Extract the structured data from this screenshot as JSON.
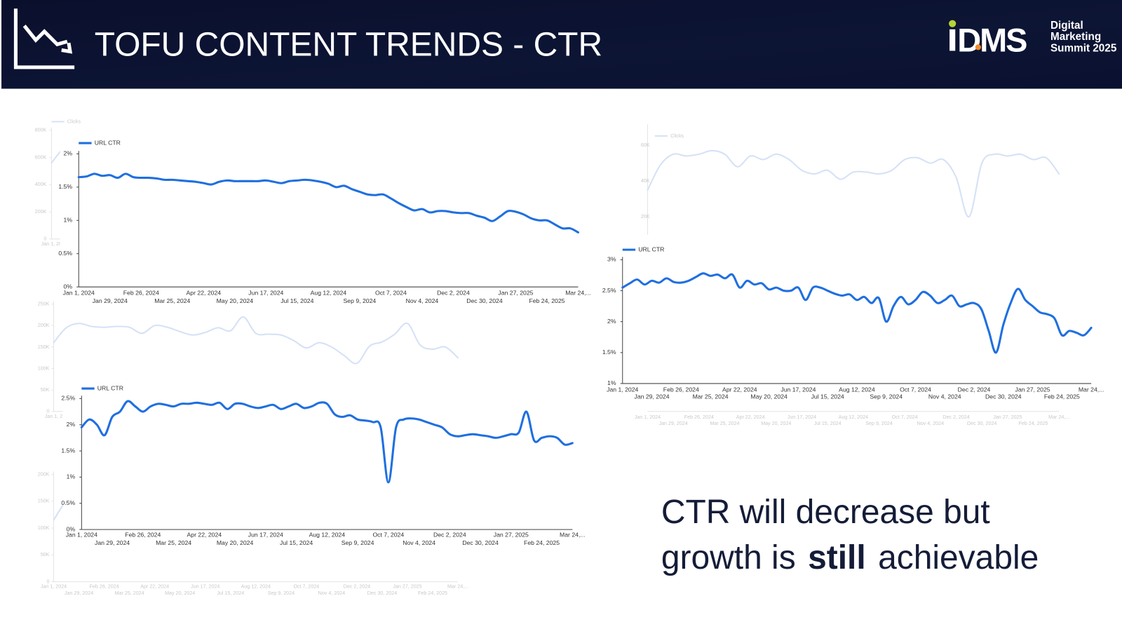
{
  "header": {
    "title": "TOFU CONTENT TRENDS - CTR",
    "logo": {
      "mark": "DMS",
      "line1": "Digital",
      "line2": "Marketing",
      "line3": "Summit 2025"
    }
  },
  "caption": {
    "line1": "CTR will decrease but",
    "line2_start": "growth is",
    "line2_bold": "still",
    "line2_end": "achievable"
  },
  "chart_data": [
    {
      "type": "line",
      "ylim": [
        0,
        800000
      ],
      "yticks": [
        0,
        {
          "value": 200000,
          "label": "200K"
        },
        {
          "value": 400000,
          "label": "400K"
        },
        {
          "value": 600000,
          "label": "600K"
        },
        {
          "value": 800000,
          "label": "800K"
        }
      ],
      "categories": [
        "Jan 1, 20",
        null,
        null,
        null,
        null,
        null,
        null,
        null,
        null,
        null,
        null,
        null,
        null,
        null,
        null,
        null,
        null,
        null,
        null,
        null,
        null,
        null,
        null,
        null,
        null,
        null,
        null,
        null,
        null,
        null,
        null,
        null,
        null
      ],
      "series": [
        {
          "name": "Clicks",
          "color": "#d5e1f7",
          "values": [
            560000,
            700000,
            720000,
            690000,
            700000,
            710000,
            700000,
            660000,
            700000,
            690000,
            680000,
            650000,
            670000,
            690000,
            670000,
            720000,
            650000,
            640000,
            640000,
            600000,
            560000,
            590000,
            570000,
            520000,
            480000,
            560000,
            580000,
            630000,
            700000,
            580000,
            550000,
            570000,
            500000
          ]
        }
      ]
    },
    {
      "type": "line",
      "ylim": [
        0,
        250000
      ],
      "yticks": [
        0,
        {
          "value": 50000,
          "label": "50K"
        },
        {
          "value": 100000,
          "label": "100K"
        },
        {
          "value": 150000,
          "label": "150K"
        },
        {
          "value": 200000,
          "label": "200K"
        },
        {
          "value": 250000,
          "label": "250K"
        }
      ],
      "categories": [
        "Jan 1, 2",
        null,
        null,
        null,
        null,
        null,
        null,
        null,
        null,
        null,
        null,
        null,
        null,
        null,
        null,
        null,
        null,
        null,
        null,
        null,
        null,
        null,
        null,
        null,
        null,
        null,
        null,
        null,
        null,
        null,
        null,
        null,
        null
      ],
      "series": [
        {
          "color": "#d5e1f7",
          "values": [
            160000,
            195000,
            205000,
            198000,
            196000,
            198000,
            196000,
            182000,
            200000,
            196000,
            186000,
            178000,
            184000,
            195000,
            188000,
            220000,
            182000,
            180000,
            178000,
            165000,
            148000,
            160000,
            150000,
            130000,
            112000,
            152000,
            162000,
            180000,
            205000,
            155000,
            145000,
            150000,
            125000
          ]
        }
      ]
    },
    {
      "type": "line",
      "ylim": [
        0,
        200000
      ],
      "yticks": [
        0,
        {
          "value": 50000,
          "label": "50K"
        },
        {
          "value": 100000,
          "label": "100K"
        },
        {
          "value": 150000,
          "label": "150K"
        },
        {
          "value": 200000,
          "label": "200K"
        }
      ],
      "categories": [
        "Jan 1, 2024",
        null,
        "Jan 29, 2024",
        null,
        "Feb 26, 2024",
        null,
        "Mar 25, 2024",
        null,
        "Apr 22, 2024",
        null,
        "May 20, 2024",
        null,
        "Jun 17, 2024",
        null,
        "Jul 15, 2024",
        null,
        "Aug 12, 2024",
        null,
        "Sep 9, 2024",
        null,
        "Oct 7, 2024",
        null,
        "Nov 4, 2024",
        null,
        "Dec 2, 2024",
        null,
        "Dec 30, 2024",
        null,
        "Jan 27, 2025",
        null,
        "Feb 24, 2025",
        null,
        "Mar 24,..."
      ],
      "series": [
        {
          "color": "#d5e1f7",
          "values": [
            115000,
            150000,
            160000,
            155000,
            150000,
            152000,
            150000,
            140000,
            155000,
            150000,
            145000,
            138000,
            142000,
            150000,
            145000,
            170000,
            140000,
            138000,
            136000,
            128000,
            115000,
            125000,
            118000,
            102000,
            90000,
            118000,
            125000,
            140000,
            158000,
            120000,
            112000,
            118000,
            98000
          ]
        }
      ]
    },
    {
      "type": "line",
      "ylim": [
        10000,
        70000
      ],
      "yticks": [
        {
          "value": 20000,
          "label": "20K"
        },
        {
          "value": 40000,
          "label": "40K"
        },
        {
          "value": 60000,
          "label": "60K"
        }
      ],
      "categories": [
        "Jan 1, 2024",
        null,
        "Jan 29, 2024",
        null,
        "Feb 26, 2024",
        null,
        "Mar 25, 2024",
        null,
        "Apr 22, 2024",
        null,
        "May 20, 2024",
        null,
        "Jun 17, 2024",
        null,
        "Jul 15, 2024",
        null,
        "Aug 12, 2024",
        null,
        "Sep 9, 2024",
        null,
        "Oct 7, 2024",
        null,
        "Nov 4, 2024",
        null,
        "Dec 2, 2024",
        null,
        "Dec 30, 2024",
        null,
        "Jan 27, 2025",
        null,
        "Feb 24, 2025",
        null,
        "Mar 24,..."
      ],
      "series": [
        {
          "name": "Clicks",
          "color": "#d5e1f7",
          "values": [
            35000,
            49000,
            55000,
            54000,
            55000,
            57000,
            55000,
            48000,
            54000,
            52000,
            55000,
            52000,
            46000,
            44000,
            46000,
            41000,
            45000,
            45000,
            44000,
            46000,
            52000,
            53000,
            50000,
            52000,
            42000,
            20000,
            50000,
            55000,
            54000,
            55000,
            52000,
            53000,
            44000
          ]
        }
      ]
    },
    {
      "type": "line",
      "ylim": [
        0,
        2
      ],
      "yticks": [
        {
          "value": 0,
          "label": "0%"
        },
        {
          "value": 0.5,
          "label": "0.5%"
        },
        {
          "value": 1,
          "label": "1%"
        },
        {
          "value": 1.5,
          "label": "1.5%"
        },
        {
          "value": 2,
          "label": "2%"
        }
      ],
      "categories": [
        "Jan 1, 2024",
        null,
        null,
        null,
        "Jan 29, 2024",
        null,
        null,
        null,
        "Feb 26, 2024",
        null,
        null,
        null,
        "Mar 25, 2024",
        null,
        null,
        null,
        "Apr 22, 2024",
        null,
        null,
        null,
        "May 20, 2024",
        null,
        null,
        null,
        "Jun 17, 2024",
        null,
        null,
        null,
        "Jul 15, 2024",
        null,
        null,
        null,
        "Aug 12, 2024",
        null,
        null,
        null,
        "Sep 9, 2024",
        null,
        null,
        null,
        "Oct 7, 2024",
        null,
        null,
        null,
        "Nov 4, 2024",
        null,
        null,
        null,
        "Dec 2, 2024",
        null,
        null,
        null,
        "Dec 30, 2024",
        null,
        null,
        null,
        "Jan 27, 2025",
        null,
        null,
        null,
        "Feb 24, 2025",
        null,
        null,
        null,
        "Mar 24,..."
      ],
      "series": [
        {
          "name": "URL CTR",
          "color": "#1f6fe0",
          "values": [
            1.65,
            1.66,
            1.7,
            1.67,
            1.68,
            1.64,
            1.7,
            1.65,
            1.64,
            1.64,
            1.63,
            1.61,
            1.61,
            1.6,
            1.59,
            1.58,
            1.56,
            1.54,
            1.58,
            1.6,
            1.59,
            1.59,
            1.59,
            1.59,
            1.6,
            1.58,
            1.56,
            1.59,
            1.6,
            1.61,
            1.6,
            1.58,
            1.55,
            1.5,
            1.52,
            1.47,
            1.43,
            1.39,
            1.38,
            1.39,
            1.33,
            1.26,
            1.2,
            1.15,
            1.17,
            1.12,
            1.14,
            1.14,
            1.12,
            1.11,
            1.11,
            1.07,
            1.04,
            0.99,
            1.06,
            1.14,
            1.13,
            1.09,
            1.03,
            1.0,
            1.0,
            0.94,
            0.88,
            0.88,
            0.82
          ]
        }
      ]
    },
    {
      "type": "line",
      "ylim": [
        0,
        2.5
      ],
      "yticks": [
        {
          "value": 0,
          "label": "0%"
        },
        {
          "value": 0.5,
          "label": "0.5%"
        },
        {
          "value": 1,
          "label": "1%"
        },
        {
          "value": 1.5,
          "label": "1.5%"
        },
        {
          "value": 2,
          "label": "2%"
        },
        {
          "value": 2.5,
          "label": "2.5%"
        }
      ],
      "categories": [
        "Jan 1, 2024",
        null,
        null,
        null,
        "Jan 29, 2024",
        null,
        null,
        null,
        "Feb 26, 2024",
        null,
        null,
        null,
        "Mar 25, 2024",
        null,
        null,
        null,
        "Apr 22, 2024",
        null,
        null,
        null,
        "May 20, 2024",
        null,
        null,
        null,
        "Jun 17, 2024",
        null,
        null,
        null,
        "Jul 15, 2024",
        null,
        null,
        null,
        "Aug 12, 2024",
        null,
        null,
        null,
        "Sep 9, 2024",
        null,
        null,
        null,
        "Oct 7, 2024",
        null,
        null,
        null,
        "Nov 4, 2024",
        null,
        null,
        null,
        "Dec 2, 2024",
        null,
        null,
        null,
        "Dec 30, 2024",
        null,
        null,
        null,
        "Jan 27, 2025",
        null,
        null,
        null,
        "Feb 24, 2025",
        null,
        null,
        null,
        "Mar 24,..."
      ],
      "series": [
        {
          "name": "URL CTR",
          "color": "#1f6fe0",
          "values": [
            1.95,
            2.1,
            2.0,
            1.8,
            2.15,
            2.25,
            2.45,
            2.35,
            2.25,
            2.35,
            2.4,
            2.38,
            2.35,
            2.4,
            2.4,
            2.42,
            2.4,
            2.38,
            2.42,
            2.3,
            2.4,
            2.4,
            2.35,
            2.32,
            2.35,
            2.38,
            2.3,
            2.35,
            2.4,
            2.32,
            2.35,
            2.42,
            2.4,
            2.2,
            2.15,
            2.18,
            2.1,
            2.08,
            2.05,
            1.95,
            0.9,
            1.95,
            2.1,
            2.12,
            2.1,
            2.05,
            2.0,
            1.95,
            1.82,
            1.78,
            1.8,
            1.82,
            1.8,
            1.78,
            1.75,
            1.78,
            1.82,
            1.85,
            2.25,
            1.7,
            1.75,
            1.78,
            1.75,
            1.62,
            1.65
          ]
        }
      ]
    },
    {
      "type": "line",
      "ylim": [
        1,
        3
      ],
      "yticks": [
        {
          "value": 1,
          "label": "1%"
        },
        {
          "value": 1.5,
          "label": "1.5%"
        },
        {
          "value": 2,
          "label": "2%"
        },
        {
          "value": 2.5,
          "label": "2.5%"
        },
        {
          "value": 3,
          "label": "3%"
        }
      ],
      "categories": [
        "Jan 1, 2024",
        null,
        null,
        null,
        "Jan 29, 2024",
        null,
        null,
        null,
        "Feb 26, 2024",
        null,
        null,
        null,
        "Mar 25, 2024",
        null,
        null,
        null,
        "Apr 22, 2024",
        null,
        null,
        null,
        "May 20, 2024",
        null,
        null,
        null,
        "Jun 17, 2024",
        null,
        null,
        null,
        "Jul 15, 2024",
        null,
        null,
        null,
        "Aug 12, 2024",
        null,
        null,
        null,
        "Sep 9, 2024",
        null,
        null,
        null,
        "Oct 7, 2024",
        null,
        null,
        null,
        "Nov 4, 2024",
        null,
        null,
        null,
        "Dec 2, 2024",
        null,
        null,
        null,
        "Dec 30, 2024",
        null,
        null,
        null,
        "Jan 27, 2025",
        null,
        null,
        null,
        "Feb 24, 2025",
        null,
        null,
        null,
        "Mar 24,..."
      ],
      "series": [
        {
          "name": "URL CTR",
          "color": "#1f6fe0",
          "values": [
            2.55,
            2.62,
            2.68,
            2.6,
            2.66,
            2.63,
            2.7,
            2.64,
            2.63,
            2.66,
            2.72,
            2.78,
            2.74,
            2.76,
            2.7,
            2.76,
            2.55,
            2.66,
            2.6,
            2.62,
            2.52,
            2.55,
            2.5,
            2.5,
            2.55,
            2.35,
            2.55,
            2.55,
            2.5,
            2.45,
            2.42,
            2.44,
            2.35,
            2.4,
            2.3,
            2.38,
            2.0,
            2.25,
            2.4,
            2.28,
            2.35,
            2.48,
            2.42,
            2.3,
            2.35,
            2.42,
            2.25,
            2.28,
            2.3,
            2.2,
            1.85,
            1.5,
            1.95,
            2.3,
            2.53,
            2.35,
            2.25,
            2.15,
            2.12,
            2.05,
            1.78,
            1.85,
            1.82,
            1.78,
            1.9
          ]
        }
      ]
    }
  ]
}
